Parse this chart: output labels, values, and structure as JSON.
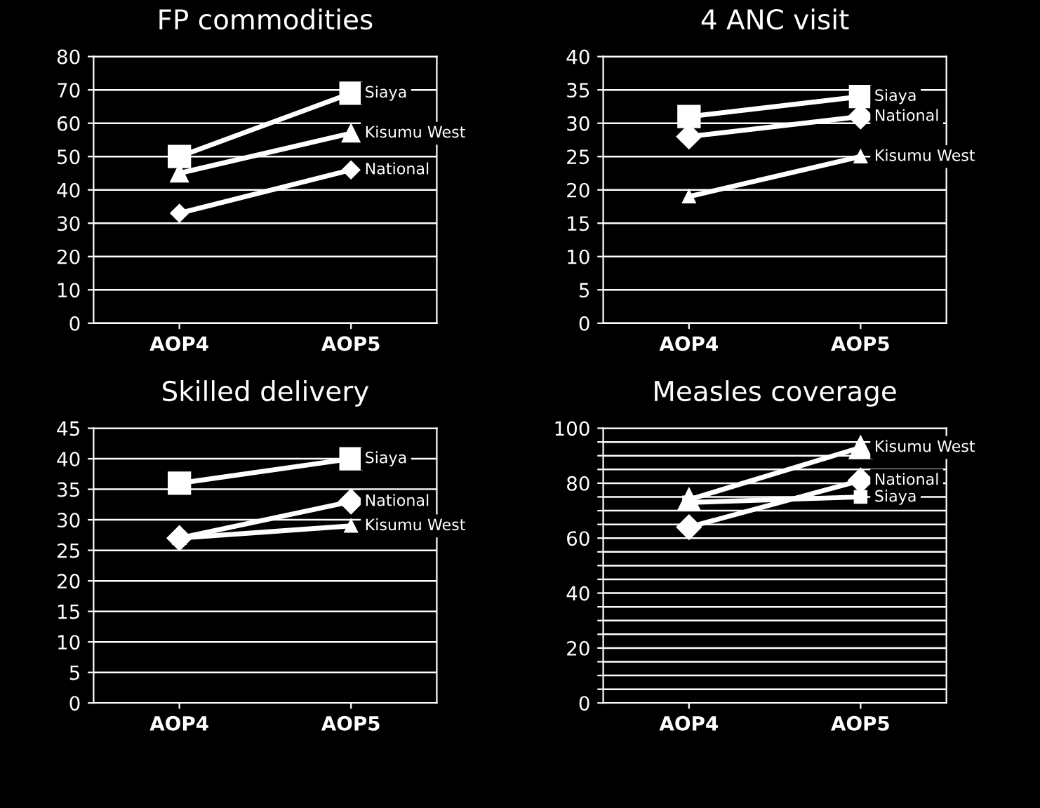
{
  "chart_data": [
    {
      "type": "line",
      "title": "FP commodities",
      "categories": [
        "AOP4",
        "AOP5"
      ],
      "ylim": [
        0,
        80
      ],
      "yticks": [
        0,
        10,
        20,
        30,
        40,
        50,
        60,
        70,
        80
      ],
      "grid": "y",
      "legend": false,
      "series": [
        {
          "name": "Siaya",
          "color": "#ffffff",
          "marker": "square",
          "values": [
            50,
            69
          ]
        },
        {
          "name": "Kisumu West",
          "color": "#ffffff",
          "marker": "triangle",
          "values": [
            45,
            57
          ]
        },
        {
          "name": "National",
          "color": "#ffffff",
          "marker": "diamond",
          "values": [
            33,
            46
          ]
        }
      ]
    },
    {
      "type": "line",
      "title": "4 ANC visit",
      "categories": [
        "AOP4",
        "AOP5"
      ],
      "ylim": [
        0,
        40
      ],
      "yticks": [
        0,
        5,
        10,
        15,
        20,
        25,
        30,
        35,
        40
      ],
      "grid": "y",
      "legend": false,
      "series": [
        {
          "name": "Siaya",
          "color": "#ffffff",
          "marker": "square",
          "values": [
            31,
            34
          ]
        },
        {
          "name": "National",
          "color": "#ffffff",
          "marker": "diamond",
          "values": [
            28,
            31
          ]
        },
        {
          "name": "Kisumu West",
          "color": "#ffffff",
          "marker": "triangle",
          "values": [
            19,
            25
          ]
        }
      ]
    },
    {
      "type": "line",
      "title": "Skilled delivery",
      "categories": [
        "AOP4",
        "AOP5"
      ],
      "ylim": [
        0,
        45
      ],
      "yticks": [
        0,
        5,
        10,
        15,
        20,
        25,
        30,
        35,
        40,
        45
      ],
      "grid": "y",
      "legend": false,
      "series": [
        {
          "name": "Siaya",
          "color": "#ffffff",
          "marker": "square",
          "values": [
            36,
            40
          ]
        },
        {
          "name": "National",
          "color": "#ffffff",
          "marker": "diamond",
          "values": [
            27,
            33
          ]
        },
        {
          "name": "Kisumu West",
          "color": "#ffffff",
          "marker": "triangle",
          "values": [
            27,
            29
          ]
        }
      ]
    },
    {
      "type": "line",
      "title": "Measles coverage",
      "categories": [
        "AOP4",
        "AOP5"
      ],
      "ylim": [
        0,
        100
      ],
      "yticks": [
        0,
        {
          "value": 5,
          "label": null
        },
        {
          "value": 10,
          "label": null
        },
        {
          "value": 15,
          "label": null
        },
        20,
        {
          "value": 25,
          "label": null
        },
        {
          "value": 30,
          "label": null
        },
        {
          "value": 35,
          "label": null
        },
        40,
        {
          "value": 45,
          "label": null
        },
        {
          "value": 50,
          "label": null
        },
        {
          "value": 55,
          "label": null
        },
        60,
        {
          "value": 65,
          "label": null
        },
        {
          "value": 70,
          "label": null
        },
        {
          "value": 75,
          "label": null
        },
        80,
        {
          "value": 85,
          "label": null
        },
        {
          "value": 90,
          "label": null
        },
        {
          "value": 95,
          "label": null
        },
        100
      ],
      "grid": "y",
      "legend": false,
      "series": [
        {
          "name": "Kisumu West",
          "color": "#ffffff",
          "marker": "triangle",
          "values": [
            74,
            93
          ]
        },
        {
          "name": "National",
          "color": "#ffffff",
          "marker": "diamond",
          "values": [
            64,
            81
          ]
        },
        {
          "name": "Siaya",
          "color": "#ffffff",
          "marker": "square",
          "values": [
            73,
            75
          ]
        }
      ]
    }
  ]
}
